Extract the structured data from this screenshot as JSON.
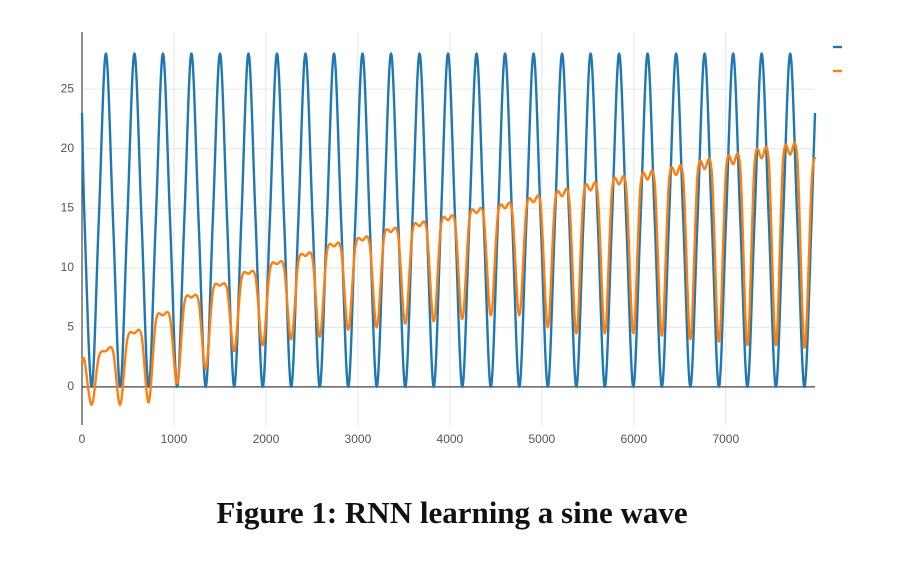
{
  "chart_data": {
    "type": "line",
    "caption": "Figure 1: RNN learning a sine wave",
    "x": [
      0,
      27.5,
      105,
      182.5,
      260,
      337.5,
      415,
      492.5,
      570,
      647.5,
      725,
      802.5,
      880,
      957.5,
      1035,
      1112.5,
      1190,
      1267.5,
      1345,
      1422.5,
      1500,
      1577.5,
      1655,
      1732.5,
      1810,
      1887.5,
      1965,
      2042.5,
      2120,
      2197.5,
      2275,
      2352.5,
      2430,
      2507.5,
      2585,
      2662.5,
      2740,
      2817.5,
      2895,
      2972.5,
      3050,
      3127.5,
      3205,
      3282.5,
      3360,
      3437.5,
      3515,
      3592.5,
      3670,
      3747.5,
      3825,
      3902.5,
      3980,
      4057.5,
      4135,
      4212.5,
      4290,
      4367.5,
      4445,
      4522.5,
      4600,
      4677.5,
      4755,
      4832.5,
      4910,
      4987.5,
      5065,
      5142.5,
      5220,
      5297.5,
      5375,
      5452.5,
      5530,
      5607.5,
      5685,
      5762.5,
      5840,
      5917.5,
      5995,
      6072.5,
      6150,
      6227.5,
      6305,
      6382.5,
      6460,
      6537.5,
      6615,
      6692.5,
      6770,
      6847.5,
      6925,
      7002.5,
      7080,
      7157.5,
      7235,
      7312.5,
      7390,
      7467.5,
      7545,
      7622.5,
      7700,
      7777.5,
      7855,
      7932.5,
      7970
    ],
    "series": [
      {
        "color": "#1f77b4",
        "values": [
          23,
          14,
          0,
          14,
          28,
          14,
          0,
          14,
          28,
          14,
          0,
          14,
          28,
          14,
          0,
          14,
          28,
          14,
          0,
          14,
          28,
          14,
          0,
          14,
          28,
          14,
          0,
          14,
          28,
          14,
          0,
          14,
          28,
          14,
          0,
          14,
          28,
          14,
          0,
          14,
          28,
          14,
          0,
          14,
          28,
          14,
          0,
          14,
          28,
          14,
          0,
          14,
          28,
          14,
          0,
          14,
          28,
          14,
          0,
          14,
          28,
          14,
          0,
          14,
          28,
          14,
          0,
          14,
          28,
          14,
          0,
          14,
          28,
          14,
          0,
          14,
          28,
          14,
          0,
          14,
          28,
          14,
          0,
          14,
          28,
          14,
          0,
          14,
          28,
          14,
          0,
          14,
          28,
          14,
          0,
          14,
          28,
          14,
          0,
          14,
          28,
          14,
          0,
          14,
          23
        ]
      },
      {
        "color": "#ff7f0e",
        "values": [
          2,
          2.2,
          -1.5,
          2.5,
          3,
          3,
          -1.5,
          4,
          4.5,
          4.3,
          -1.3,
          5.5,
          6,
          5.8,
          0.3,
          7,
          7.5,
          7.2,
          1.5,
          8,
          8.5,
          8.2,
          3,
          9,
          9.5,
          9.2,
          3.5,
          9.8,
          10.3,
          10,
          4,
          10.5,
          11,
          10.7,
          4.2,
          11.3,
          11.8,
          11.5,
          4.8,
          11.8,
          12.3,
          12,
          5,
          12.5,
          13,
          12.7,
          5.3,
          13,
          13.5,
          13.2,
          5.5,
          13.5,
          14,
          13.7,
          5.7,
          14.1,
          14.6,
          14.3,
          6,
          14.5,
          15,
          14.7,
          6,
          15,
          15.5,
          15.2,
          5,
          15.5,
          16,
          15.7,
          4.5,
          16,
          16.5,
          16.2,
          4.5,
          16.5,
          17,
          16.7,
          4.5,
          16.9,
          17.4,
          17.1,
          4.3,
          17.3,
          17.8,
          17.5,
          4,
          17.8,
          18.3,
          18,
          3.8,
          18.2,
          18.7,
          18.4,
          3.5,
          18.7,
          19.2,
          18.9,
          3.5,
          19,
          19.5,
          19.2,
          3.3,
          17,
          19.3
        ]
      }
    ],
    "xlim": [
      0,
      7970
    ],
    "xticks": [
      0,
      1000,
      2000,
      3000,
      4000,
      5000,
      6000,
      7000
    ],
    "ylim": [
      -3.2,
      29.8
    ],
    "yticks": [
      0,
      5,
      10,
      15,
      20,
      25
    ],
    "grid": true,
    "legend": "top-right"
  }
}
